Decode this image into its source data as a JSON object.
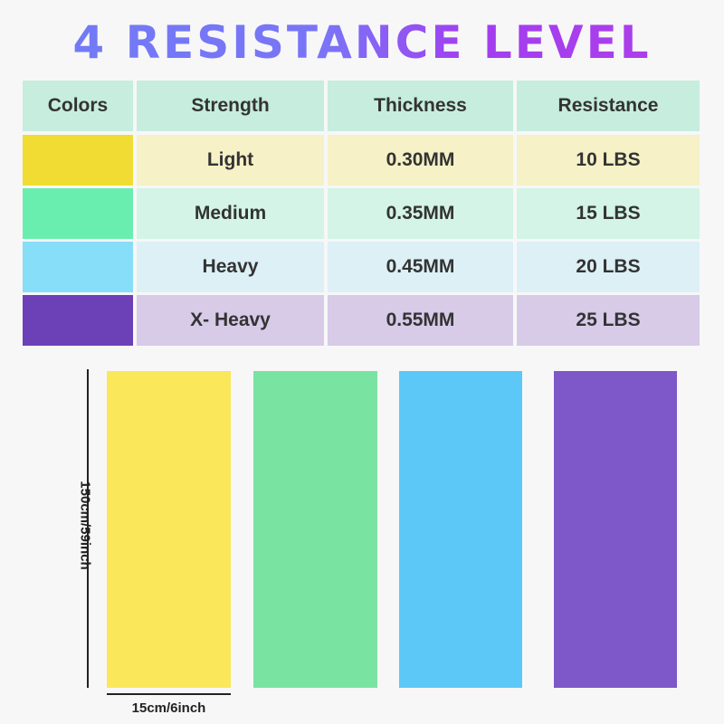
{
  "title": "4 RESISTANCE LEVEL",
  "table": {
    "headers": [
      "Colors",
      "Strength",
      "Thickness",
      "Resistance"
    ],
    "rows": [
      {
        "color": "#f0dc32",
        "tint": "#f6f1c6",
        "strength": "Light",
        "thickness": "0.30MM",
        "resistance": "10 LBS"
      },
      {
        "color": "#6aeeaf",
        "tint": "#d3f4e6",
        "strength": "Medium",
        "thickness": "0.35MM",
        "resistance": "15 LBS"
      },
      {
        "color": "#86def9",
        "tint": "#dcf0f6",
        "strength": "Heavy",
        "thickness": "0.45MM",
        "resistance": "20 LBS"
      },
      {
        "color": "#6c41b8",
        "tint": "#d7cbe8",
        "strength": "X- Heavy",
        "thickness": "0.55MM",
        "resistance": "25 LBS"
      }
    ],
    "header_color": "#c6eddd"
  },
  "bands": [
    {
      "name": "yellow",
      "color": "#fbe75a"
    },
    {
      "name": "green",
      "color": "#79e3a2"
    },
    {
      "name": "blue",
      "color": "#5bc8f7"
    },
    {
      "name": "purple",
      "color": "#7e57c8"
    }
  ],
  "dimensions": {
    "length": "150cm/59inch",
    "width": "15cm/6inch"
  }
}
